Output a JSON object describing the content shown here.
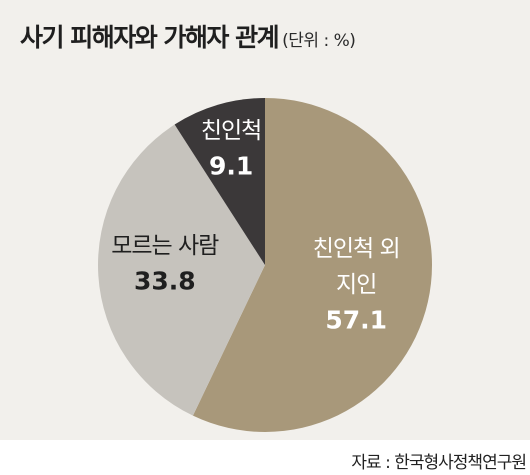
{
  "title": "사기 피해자와 가해자 관계",
  "unit": "(단위 : %)",
  "source": "자료 : 한국형사정책연구원",
  "chart_data": {
    "type": "pie",
    "title": "사기 피해자와 가해자 관계",
    "unit": "%",
    "start": "top, clockwise",
    "slices": [
      {
        "label": [
          "친인척 외",
          "지인"
        ],
        "value": 57.1,
        "color": "#a8987a",
        "text_color": "#ffffff"
      },
      {
        "label": [
          "모르는 사람"
        ],
        "value": 33.8,
        "color": "#c6c3bd",
        "text_color": "#1f1f1f"
      },
      {
        "label": [
          "친인척"
        ],
        "value": 9.1,
        "color": "#3b3839",
        "text_color": "#ffffff"
      }
    ]
  }
}
